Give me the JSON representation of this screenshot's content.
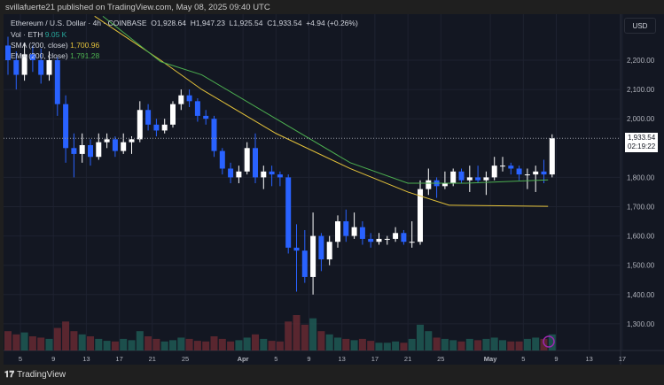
{
  "header": {
    "published": "svillafuerte21 published on TradingView.com, May 08, 2025 09:40 UTC"
  },
  "legend": {
    "title": "Ethereum / U.S. Dollar · 4h · COINBASE",
    "open": "O1,928.64",
    "high": "H1,947.23",
    "low": "L1,925.54",
    "close": "C1,933.54",
    "change": "+4.94 (+0.26%)",
    "vol_label": "Vol · ETH",
    "vol_value": "9.05 K",
    "sma_label": "SMA (200, close)",
    "sma_value": "1,700.96",
    "ema_label": "EMA (200, close)",
    "ema_value": "1,791.28"
  },
  "axis": {
    "currency": "USD",
    "last_price": "1,933.54",
    "countdown": "02:19:22"
  },
  "footer": {
    "brand": "TradingView"
  },
  "colors": {
    "up": "#ffffff",
    "down": "#2962ff",
    "sma": "#e5c33a",
    "ema": "#4caf50",
    "vol_up": "#1f5e58",
    "vol_down": "#6b2a33",
    "background": "#131722"
  },
  "chart_data": {
    "type": "candlestick",
    "symbol": "ETHUSD",
    "timeframe": "4h",
    "ylim": [
      1250,
      2320
    ],
    "y_ticks": [
      "2,200.00",
      "2,100.00",
      "2,000.00",
      "1,800.00",
      "1,700.00",
      "1,600.00",
      "1,500.00",
      "1,400.00",
      "1,300.00"
    ],
    "y_tick_values": [
      2200,
      2100,
      2000,
      1800,
      1700,
      1600,
      1500,
      1400,
      1300
    ],
    "x_ticks": [
      "5",
      "9",
      "13",
      "17",
      "21",
      "25",
      "Apr",
      "5",
      "9",
      "13",
      "17",
      "21",
      "25",
      "May",
      "5",
      "9",
      "13",
      "17"
    ],
    "x_tick_dates": [
      "2025-03-05",
      "2025-03-09",
      "2025-03-13",
      "2025-03-17",
      "2025-03-21",
      "2025-03-25",
      "2025-04-01",
      "2025-04-05",
      "2025-04-09",
      "2025-04-13",
      "2025-04-17",
      "2025-04-21",
      "2025-04-25",
      "2025-05-01",
      "2025-05-05",
      "2025-05-09",
      "2025-05-13",
      "2025-05-17"
    ],
    "grid": true,
    "candles_daily_approx": [
      [
        "2025-03-03",
        2250,
        2280,
        2150,
        2200
      ],
      [
        "2025-03-04",
        2200,
        2230,
        2100,
        2150
      ],
      [
        "2025-03-05",
        2150,
        2260,
        2130,
        2220
      ],
      [
        "2025-03-06",
        2220,
        2250,
        2160,
        2200
      ],
      [
        "2025-03-07",
        2200,
        2240,
        2120,
        2150
      ],
      [
        "2025-03-08",
        2150,
        2230,
        2130,
        2200
      ],
      [
        "2025-03-09",
        2200,
        2210,
        2010,
        2050
      ],
      [
        "2025-03-10",
        2050,
        2080,
        1850,
        1900
      ],
      [
        "2025-03-11",
        1900,
        1950,
        1800,
        1880
      ],
      [
        "2025-03-12",
        1880,
        1950,
        1850,
        1910
      ],
      [
        "2025-03-13",
        1910,
        1930,
        1840,
        1870
      ],
      [
        "2025-03-14",
        1870,
        1950,
        1860,
        1920
      ],
      [
        "2025-03-15",
        1920,
        1950,
        1900,
        1930
      ],
      [
        "2025-03-16",
        1930,
        1940,
        1870,
        1890
      ],
      [
        "2025-03-17",
        1890,
        1950,
        1880,
        1920
      ],
      [
        "2025-03-18",
        1920,
        1940,
        1880,
        1930
      ],
      [
        "2025-03-19",
        1930,
        2060,
        1920,
        2030
      ],
      [
        "2025-03-20",
        2030,
        2050,
        1960,
        1980
      ],
      [
        "2025-03-21",
        1980,
        2000,
        1940,
        1960
      ],
      [
        "2025-03-22",
        1960,
        2000,
        1950,
        1980
      ],
      [
        "2025-03-23",
        1980,
        2060,
        1970,
        2050
      ],
      [
        "2025-03-24",
        2050,
        2100,
        2030,
        2080
      ],
      [
        "2025-03-25",
        2080,
        2100,
        2040,
        2060
      ],
      [
        "2025-03-26",
        2060,
        2070,
        1990,
        2010
      ],
      [
        "2025-03-27",
        2010,
        2030,
        1980,
        2000
      ],
      [
        "2025-03-28",
        2000,
        2010,
        1870,
        1890
      ],
      [
        "2025-03-29",
        1890,
        1900,
        1810,
        1830
      ],
      [
        "2025-03-30",
        1830,
        1850,
        1780,
        1800
      ],
      [
        "2025-03-31",
        1800,
        1840,
        1780,
        1820
      ],
      [
        "2025-04-01",
        1820,
        1920,
        1810,
        1900
      ],
      [
        "2025-04-02",
        1900,
        1950,
        1780,
        1800
      ],
      [
        "2025-04-03",
        1800,
        1840,
        1760,
        1820
      ],
      [
        "2025-04-04",
        1820,
        1840,
        1770,
        1810
      ],
      [
        "2025-04-05",
        1810,
        1820,
        1770,
        1800
      ],
      [
        "2025-04-06",
        1800,
        1810,
        1540,
        1560
      ],
      [
        "2025-04-07",
        1560,
        1640,
        1410,
        1550
      ],
      [
        "2025-04-08",
        1550,
        1620,
        1440,
        1460
      ],
      [
        "2025-04-09",
        1460,
        1680,
        1400,
        1600
      ],
      [
        "2025-04-10",
        1600,
        1610,
        1480,
        1520
      ],
      [
        "2025-04-11",
        1520,
        1600,
        1500,
        1580
      ],
      [
        "2025-04-12",
        1580,
        1670,
        1560,
        1650
      ],
      [
        "2025-04-13",
        1650,
        1690,
        1580,
        1600
      ],
      [
        "2025-04-14",
        1600,
        1680,
        1590,
        1630
      ],
      [
        "2025-04-15",
        1630,
        1650,
        1570,
        1590
      ],
      [
        "2025-04-16",
        1590,
        1610,
        1560,
        1580
      ],
      [
        "2025-04-17",
        1580,
        1610,
        1570,
        1590
      ],
      [
        "2025-04-18",
        1590,
        1600,
        1570,
        1590
      ],
      [
        "2025-04-19",
        1590,
        1630,
        1580,
        1610
      ],
      [
        "2025-04-20",
        1610,
        1620,
        1570,
        1580
      ],
      [
        "2025-04-21",
        1580,
        1650,
        1560,
        1580
      ],
      [
        "2025-04-22",
        1580,
        1790,
        1570,
        1760
      ],
      [
        "2025-04-23",
        1760,
        1830,
        1740,
        1790
      ],
      [
        "2025-04-24",
        1790,
        1800,
        1730,
        1770
      ],
      [
        "2025-04-25",
        1770,
        1820,
        1760,
        1780
      ],
      [
        "2025-04-26",
        1780,
        1830,
        1770,
        1820
      ],
      [
        "2025-04-27",
        1820,
        1830,
        1780,
        1790
      ],
      [
        "2025-04-28",
        1790,
        1840,
        1750,
        1800
      ],
      [
        "2025-04-29",
        1800,
        1840,
        1780,
        1790
      ],
      [
        "2025-04-30",
        1790,
        1820,
        1740,
        1800
      ],
      [
        "2025-05-01",
        1800,
        1870,
        1790,
        1840
      ],
      [
        "2025-05-02",
        1840,
        1870,
        1820,
        1840
      ],
      [
        "2025-05-03",
        1840,
        1850,
        1810,
        1830
      ],
      [
        "2025-05-04",
        1830,
        1840,
        1790,
        1810
      ],
      [
        "2025-05-05",
        1810,
        1830,
        1760,
        1810
      ],
      [
        "2025-05-06",
        1810,
        1840,
        1750,
        1820
      ],
      [
        "2025-05-07",
        1820,
        1860,
        1780,
        1810
      ],
      [
        "2025-05-08",
        1810,
        1947,
        1800,
        1933.54
      ]
    ],
    "volume_daily_approx": [
      30,
      25,
      28,
      22,
      20,
      18,
      35,
      45,
      30,
      25,
      22,
      18,
      15,
      14,
      18,
      16,
      30,
      22,
      18,
      14,
      16,
      20,
      18,
      15,
      14,
      22,
      18,
      14,
      16,
      20,
      25,
      18,
      15,
      14,
      45,
      55,
      40,
      50,
      30,
      25,
      20,
      18,
      16,
      18,
      15,
      12,
      12,
      14,
      12,
      18,
      40,
      30,
      20,
      18,
      16,
      14,
      18,
      16,
      18,
      20,
      16,
      14,
      14,
      18,
      20,
      18,
      25
    ],
    "sma_200": [
      [
        "2025-03-14",
        2350
      ],
      [
        "2025-03-22",
        2200
      ],
      [
        "2025-03-27",
        2100
      ],
      [
        "2025-04-05",
        1950
      ],
      [
        "2025-04-14",
        1830
      ],
      [
        "2025-04-21",
        1750
      ],
      [
        "2025-04-26",
        1705
      ],
      [
        "2025-05-08",
        1700.96
      ]
    ],
    "ema_200": [
      [
        "2025-03-15",
        2350
      ],
      [
        "2025-03-22",
        2195
      ],
      [
        "2025-03-27",
        2150
      ],
      [
        "2025-04-05",
        2000
      ],
      [
        "2025-04-14",
        1850
      ],
      [
        "2025-04-21",
        1780
      ],
      [
        "2025-04-28",
        1780
      ],
      [
        "2025-05-08",
        1791.28
      ]
    ]
  }
}
